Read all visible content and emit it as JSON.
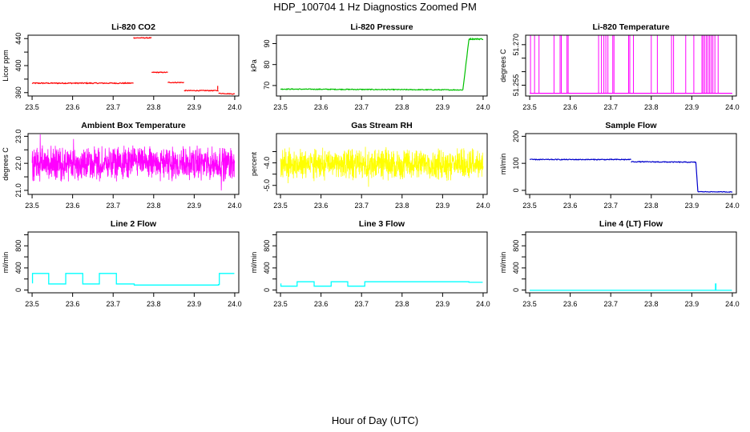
{
  "figure": {
    "title": "HDP_100704  1 Hz Diagnostics Zoomed PM",
    "xlabel": "Hour of Day (UTC)"
  },
  "chart_data": [
    {
      "type": "line",
      "title": "Li-820 CO2",
      "ylabel": "Licor ppm",
      "color": "#ff0000",
      "xlim": [
        23.49,
        24.01
      ],
      "ylim": [
        355,
        445
      ],
      "xticks": [
        "23.5",
        "23.6",
        "23.7",
        "23.8",
        "23.9",
        "24.0"
      ],
      "yticks": [
        360,
        380,
        400,
        420,
        440
      ],
      "ytick_labels": [
        "360",
        "",
        "400",
        "",
        "440"
      ],
      "series": [
        {
          "name": "CO2",
          "segments": [
            {
              "x": [
                23.5,
                23.75
              ],
              "y": [
                374,
                374
              ],
              "noise": 0.8
            },
            {
              "x": [
                23.75,
                23.795
              ],
              "y": [
                441,
                441
              ],
              "noise": 0.6
            },
            {
              "x": [
                23.795,
                23.835
              ],
              "y": [
                390,
                390
              ],
              "noise": 0.6
            },
            {
              "x": [
                23.835,
                23.875
              ],
              "y": [
                375,
                375
              ],
              "noise": 0.6
            },
            {
              "x": [
                23.875,
                23.96
              ],
              "y": [
                363,
                363
              ],
              "noise": 0.6
            },
            {
              "x": [
                23.96,
                24.0
              ],
              "y": [
                359,
                358
              ],
              "noise": 0.5
            }
          ],
          "spikes": [
            {
              "x": 23.958,
              "y": 370
            }
          ]
        }
      ]
    },
    {
      "type": "line",
      "title": "Li-820 Pressure",
      "ylabel": "kPa",
      "color": "#00c000",
      "xlim": [
        23.49,
        24.01
      ],
      "ylim": [
        65,
        94
      ],
      "xticks": [
        "23.5",
        "23.6",
        "23.7",
        "23.8",
        "23.9",
        "24.0"
      ],
      "yticks": [
        70,
        80,
        90
      ],
      "ytick_labels": [
        "70",
        "80",
        "90"
      ],
      "series": [
        {
          "name": "Pressure",
          "segments": [
            {
              "x": [
                23.5,
                23.95
              ],
              "y": [
                68.3,
                67.9
              ],
              "noise": 0.2
            },
            {
              "x": [
                23.95,
                23.965
              ],
              "y": [
                67.9,
                92
              ],
              "noise": 0.3
            },
            {
              "x": [
                23.965,
                24.0
              ],
              "y": [
                92.2,
                92.2
              ],
              "noise": 0.3
            }
          ]
        }
      ]
    },
    {
      "type": "line",
      "title": "Li-820 Temperature",
      "ylabel": "degrees C",
      "color": "#ff00ff",
      "xlim": [
        23.49,
        24.01
      ],
      "ylim": [
        51.251,
        51.2735
      ],
      "xticks": [
        "23.5",
        "23.6",
        "23.7",
        "23.8",
        "23.9",
        "24.0"
      ],
      "yticks": [
        51.255,
        51.26,
        51.265,
        51.27
      ],
      "ytick_labels": [
        "51.255",
        "",
        "",
        "51.270"
      ],
      "baseline": 51.252,
      "high": 51.2735,
      "spikes": [
        23.502,
        23.512,
        23.523,
        23.56,
        23.575,
        23.578,
        23.592,
        23.595,
        23.67,
        23.677,
        23.683,
        23.688,
        23.693,
        23.705,
        23.708,
        23.744,
        23.747,
        23.756,
        23.8,
        23.815,
        23.85,
        23.855,
        23.885,
        23.905,
        23.925,
        23.928,
        23.932,
        23.936,
        23.94,
        23.944,
        23.948,
        23.952,
        23.957,
        23.965
      ]
    },
    {
      "type": "line",
      "title": "Ambient Box Temperature",
      "ylabel": "degrees C",
      "color": "#ff00ff",
      "xlim": [
        23.49,
        24.01
      ],
      "ylim": [
        20.85,
        23.1
      ],
      "xticks": [
        "23.5",
        "23.6",
        "23.7",
        "23.8",
        "23.9",
        "24.0"
      ],
      "yticks": [
        21.0,
        21.5,
        22.0,
        22.5,
        23.0
      ],
      "ytick_labels": [
        "21.0",
        "",
        "22.0",
        "",
        "23.0"
      ],
      "noise_band": {
        "center": 22.0,
        "amp": 0.55,
        "count": 1100
      }
    },
    {
      "type": "line",
      "title": "Gas Stream RH",
      "ylabel": "percent",
      "color": "#ffff00",
      "xlim": [
        23.49,
        24.01
      ],
      "ylim": [
        -5.4,
        -2.7
      ],
      "xticks": [
        "23.5",
        "23.6",
        "23.7",
        "23.8",
        "23.9",
        "24.0"
      ],
      "yticks": [
        -5.0,
        -4.5,
        -4.0,
        -3.5
      ],
      "ytick_labels": [
        "-5.0",
        "",
        "-4.0",
        ""
      ],
      "noise_band": {
        "center": -4.05,
        "amp": 0.6,
        "count": 1100
      }
    },
    {
      "type": "line",
      "title": "Sample Flow",
      "ylabel": "ml/min",
      "color": "#0000cc",
      "xlim": [
        23.49,
        24.01
      ],
      "ylim": [
        -15,
        210
      ],
      "xticks": [
        "23.5",
        "23.6",
        "23.7",
        "23.8",
        "23.9",
        "24.0"
      ],
      "yticks": [
        0,
        100,
        200
      ],
      "ytick_labels": [
        "0",
        "100",
        "200"
      ],
      "series": [
        {
          "name": "Sample Flow",
          "segments": [
            {
              "x": [
                23.5,
                23.75
              ],
              "y": [
                114,
                114
              ],
              "noise": 1.5
            },
            {
              "x": [
                23.75,
                23.91
              ],
              "y": [
                106,
                104
              ],
              "noise": 1.5
            },
            {
              "x": [
                23.91,
                23.915
              ],
              "y": [
                104,
                -5
              ],
              "noise": 0
            },
            {
              "x": [
                23.915,
                24.0
              ],
              "y": [
                -5,
                -6
              ],
              "noise": 1
            }
          ]
        }
      ]
    },
    {
      "type": "line",
      "title": "Line 2 Flow",
      "ylabel": "ml/min",
      "color": "#00ffff",
      "xlim": [
        23.49,
        24.01
      ],
      "ylim": [
        -50,
        1050
      ],
      "xticks": [
        "23.5",
        "23.6",
        "23.7",
        "23.8",
        "23.9",
        "24.0"
      ],
      "yticks": [
        0,
        200,
        400,
        600,
        800,
        1000
      ],
      "ytick_labels": [
        "0",
        "",
        "400",
        "",
        "800",
        ""
      ],
      "series": [
        {
          "name": "Line 2",
          "steps": [
            [
              23.5,
              130
            ],
            [
              23.501,
              300
            ],
            [
              23.541,
              110
            ],
            [
              23.583,
              300
            ],
            [
              23.625,
              110
            ],
            [
              23.666,
              300
            ],
            [
              23.708,
              110
            ],
            [
              23.752,
              90
            ],
            [
              23.96,
              100
            ],
            [
              23.962,
              300
            ],
            [
              23.999,
              300
            ]
          ]
        }
      ]
    },
    {
      "type": "line",
      "title": "Line 3 Flow",
      "ylabel": "ml/min",
      "color": "#00ffff",
      "xlim": [
        23.49,
        24.01
      ],
      "ylim": [
        -50,
        1050
      ],
      "xticks": [
        "23.5",
        "23.6",
        "23.7",
        "23.8",
        "23.9",
        "24.0"
      ],
      "yticks": [
        0,
        200,
        400,
        600,
        800,
        1000
      ],
      "ytick_labels": [
        "0",
        "",
        "400",
        "",
        "800",
        ""
      ],
      "series": [
        {
          "name": "Line 3",
          "steps": [
            [
              23.5,
              110
            ],
            [
              23.501,
              70
            ],
            [
              23.541,
              150
            ],
            [
              23.583,
              70
            ],
            [
              23.625,
              150
            ],
            [
              23.666,
              70
            ],
            [
              23.708,
              150
            ],
            [
              23.96,
              150
            ],
            [
              23.965,
              140
            ],
            [
              23.999,
              140
            ]
          ]
        }
      ]
    },
    {
      "type": "line",
      "title": "Line 4 (LT) Flow",
      "ylabel": "ml/min",
      "color": "#00ffff",
      "xlim": [
        23.49,
        24.01
      ],
      "ylim": [
        -50,
        1050
      ],
      "xticks": [
        "23.5",
        "23.6",
        "23.7",
        "23.8",
        "23.9",
        "24.0"
      ],
      "yticks": [
        0,
        200,
        400,
        600,
        800,
        1000
      ],
      "ytick_labels": [
        "0",
        "",
        "400",
        "",
        "800",
        ""
      ],
      "series": [
        {
          "name": "Line 4",
          "steps": [
            [
              23.5,
              -5
            ],
            [
              23.958,
              -5
            ],
            [
              23.9585,
              110
            ],
            [
              23.9595,
              -5
            ],
            [
              23.999,
              -5
            ]
          ]
        }
      ]
    }
  ]
}
